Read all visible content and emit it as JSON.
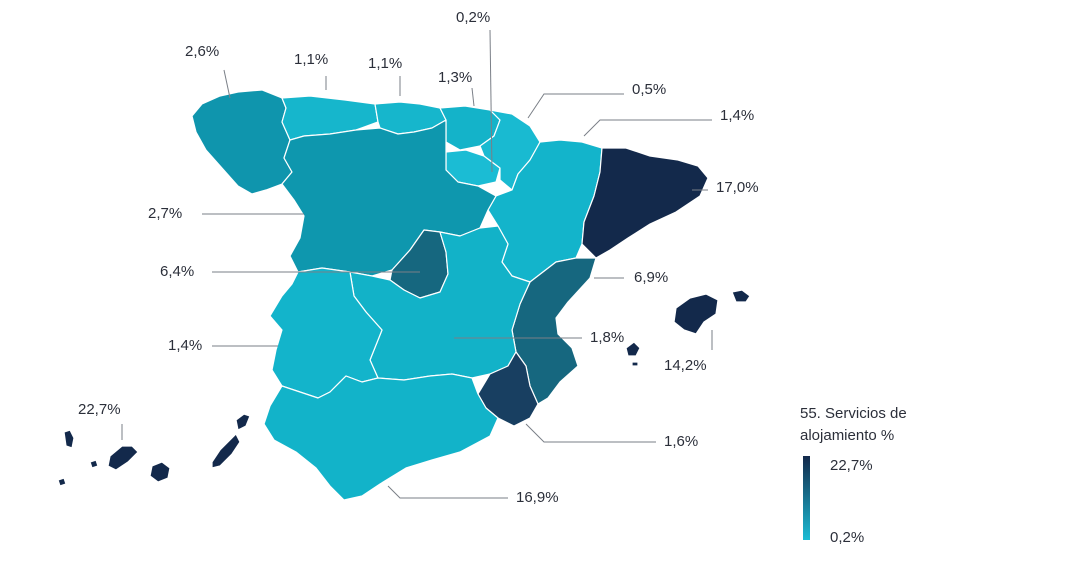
{
  "legend": {
    "title_line1": "55. Servicios de",
    "title_line2": "alojamiento %",
    "max_label": "22,7%",
    "min_label": "0,2%",
    "color_max": "#13294b",
    "color_min": "#1bbcd4"
  },
  "regions": [
    {
      "name": "Galicia",
      "value": "2,6%",
      "color": "#0f95ad"
    },
    {
      "name": "Asturias",
      "value": "1,1%",
      "color": "#16b6cc"
    },
    {
      "name": "Cantabria",
      "value": "1,1%",
      "color": "#16b6cc"
    },
    {
      "name": "País Vasco",
      "value": "1,3%",
      "color": "#14b3c9"
    },
    {
      "name": "La Rioja",
      "value": "0,2%",
      "color": "#1bbcd4"
    },
    {
      "name": "Navarra",
      "value": "0,5%",
      "color": "#19bad1"
    },
    {
      "name": "Aragón",
      "value": "1,4%",
      "color": "#13b4cb"
    },
    {
      "name": "Cataluña",
      "value": "17,0%",
      "color": "#13294b"
    },
    {
      "name": "Castilla y León",
      "value": "2,7%",
      "color": "#0e97ae"
    },
    {
      "name": "Madrid",
      "value": "6,4%",
      "color": "#16677f"
    },
    {
      "name": "Comunidad Valenciana",
      "value": "6,9%",
      "color": "#16677f"
    },
    {
      "name": "Castilla-La Mancha",
      "value": "1,8%",
      "color": "#12b2c8"
    },
    {
      "name": "Extremadura",
      "value": "1,4%",
      "color": "#13b4cb"
    },
    {
      "name": "Islas Baleares",
      "value": "14,2%",
      "color": "#183f61"
    },
    {
      "name": "Murcia",
      "value": "1,6%",
      "color": "#12b3c9"
    },
    {
      "name": "Andalucía",
      "value": "16,9%",
      "color": "#13294b"
    },
    {
      "name": "Canarias",
      "value": "22,7%",
      "color": "#13294b"
    }
  ]
}
